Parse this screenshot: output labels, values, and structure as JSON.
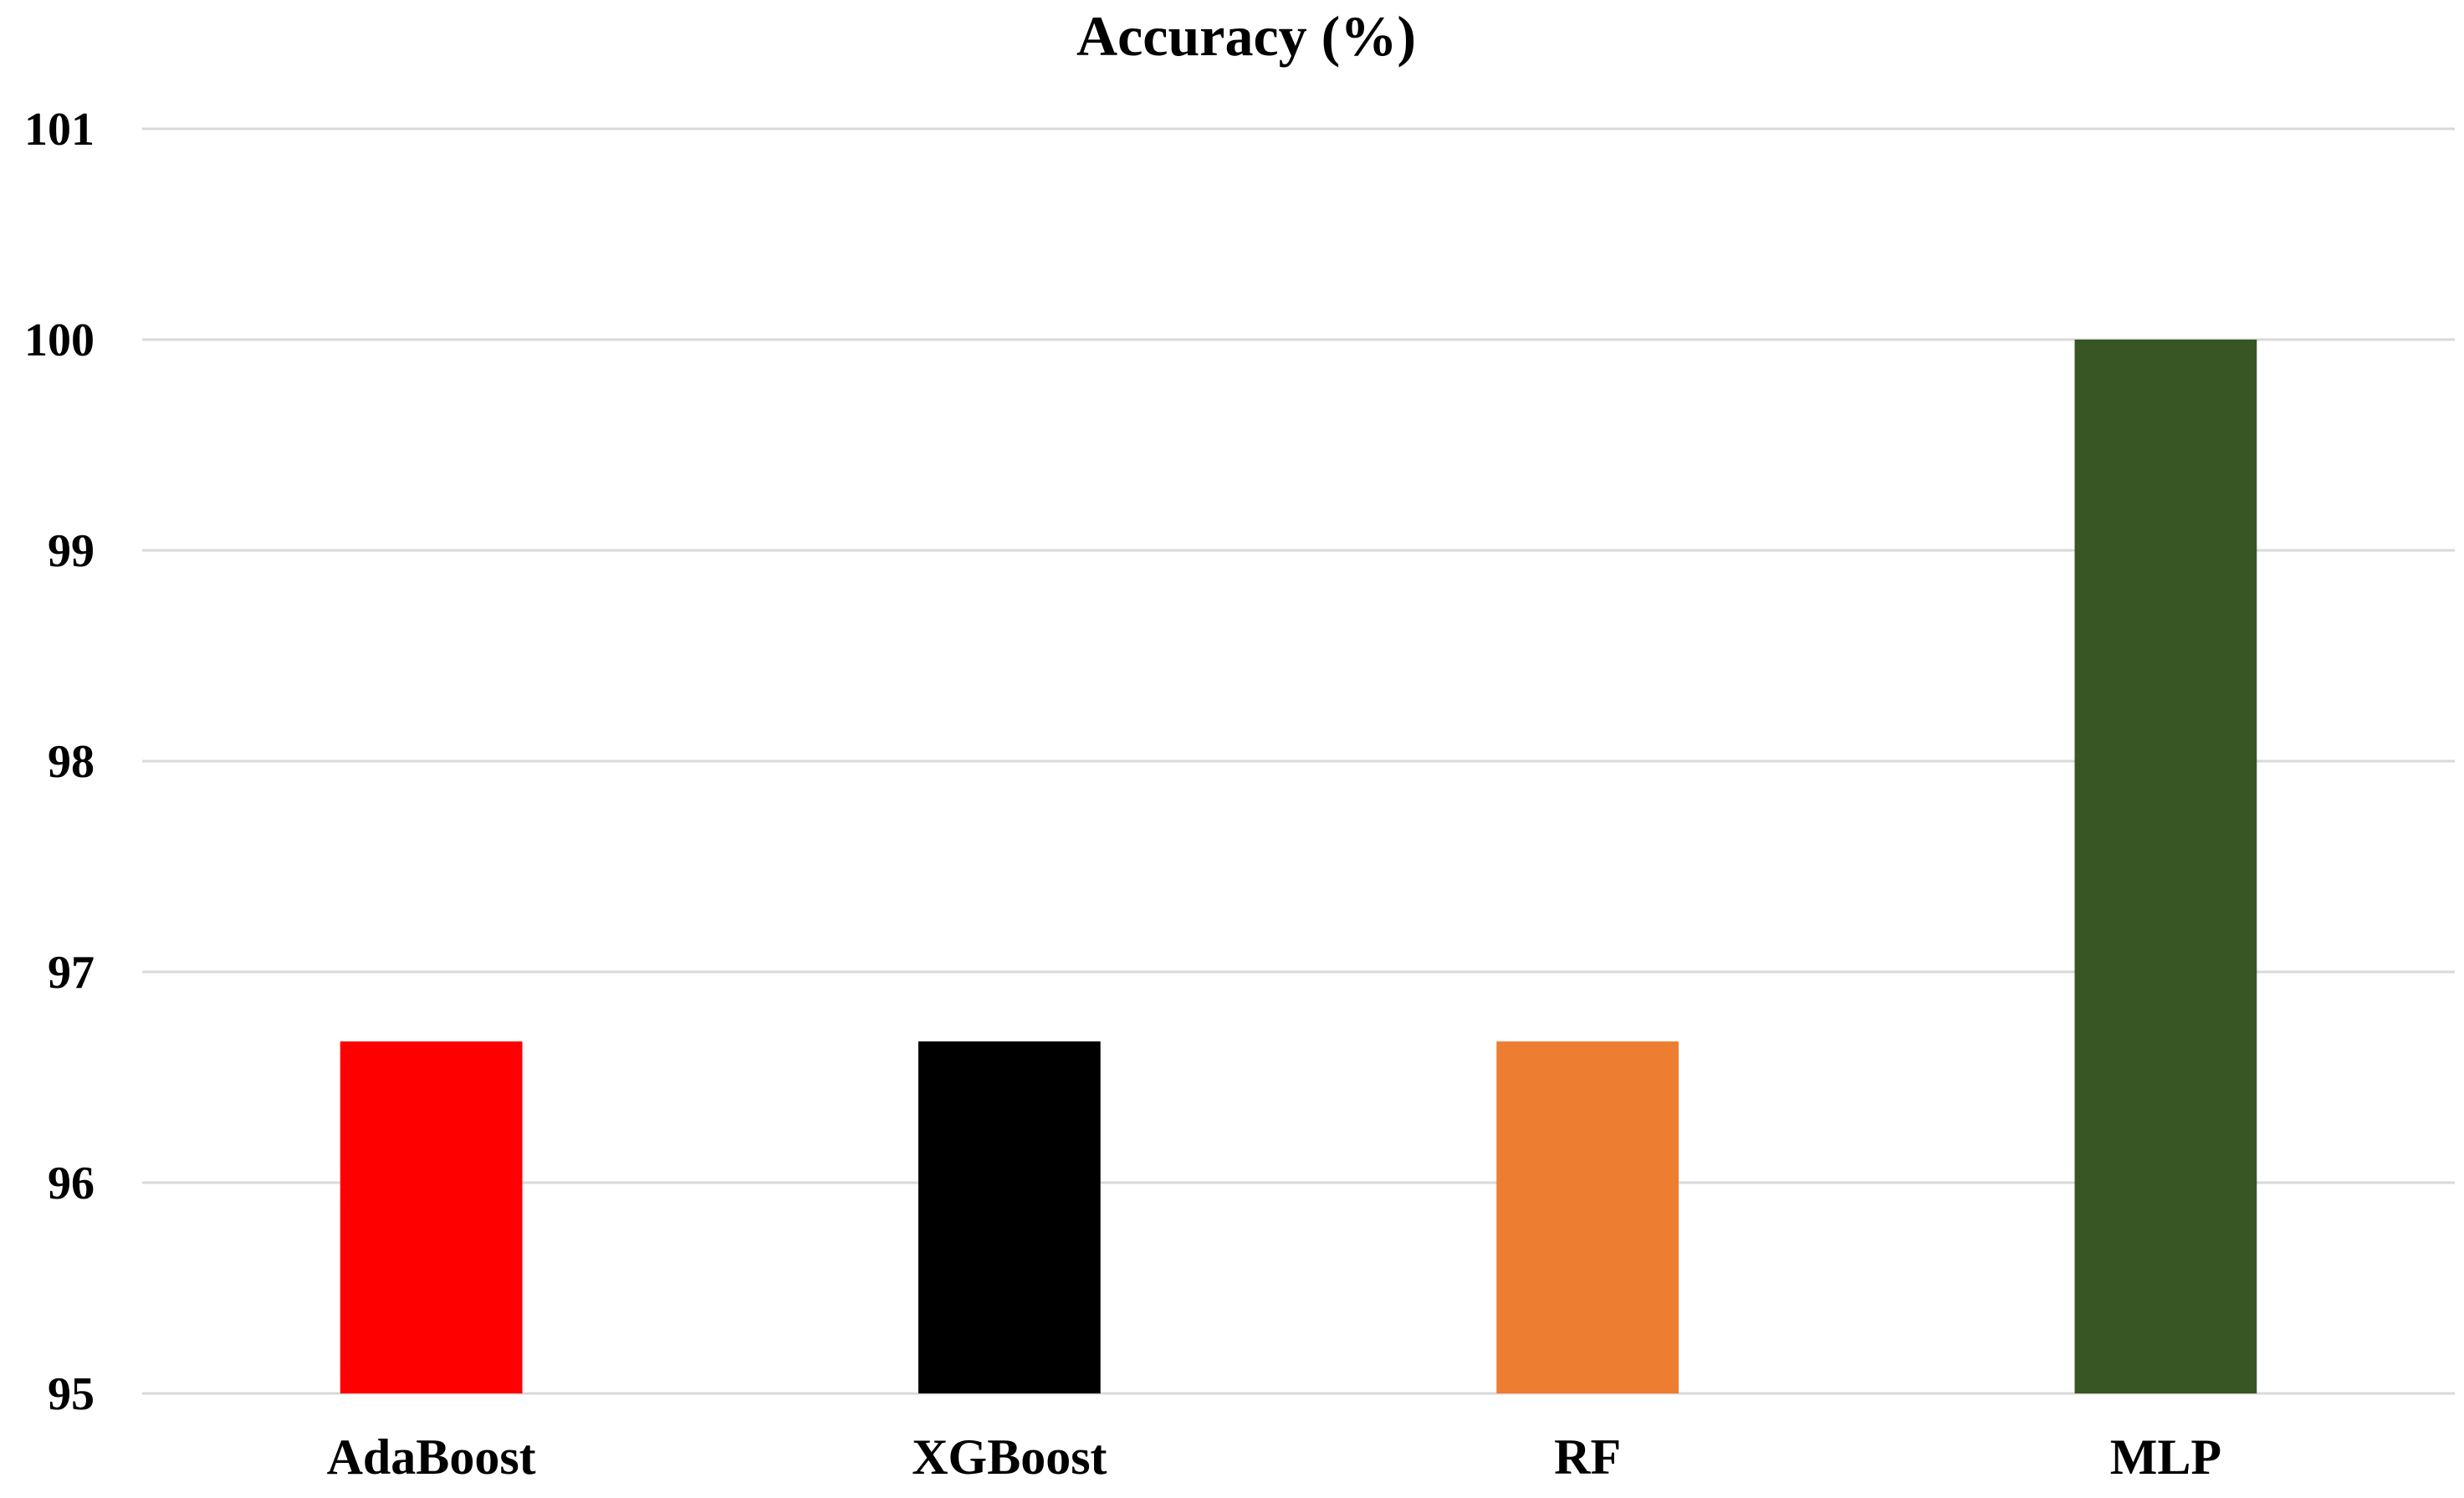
{
  "chart_data": {
    "type": "bar",
    "title": "Accuracy (%)",
    "xlabel": "",
    "ylabel": "",
    "categories": [
      "AdaBoost",
      "XGBoost",
      "RF",
      "MLP"
    ],
    "values": [
      96.67,
      96.67,
      96.67,
      100
    ],
    "colors": [
      "#FF0000",
      "#000000",
      "#ED7D31",
      "#375623"
    ],
    "ylim": [
      95,
      101
    ],
    "yticks": [
      95,
      96,
      97,
      98,
      99,
      100,
      101
    ],
    "ytick_labels": [
      "95",
      "96",
      "97",
      "98",
      "99",
      "100",
      "101"
    ],
    "grid": true,
    "gridline_color": "#D9D9D9",
    "legend": "none"
  }
}
